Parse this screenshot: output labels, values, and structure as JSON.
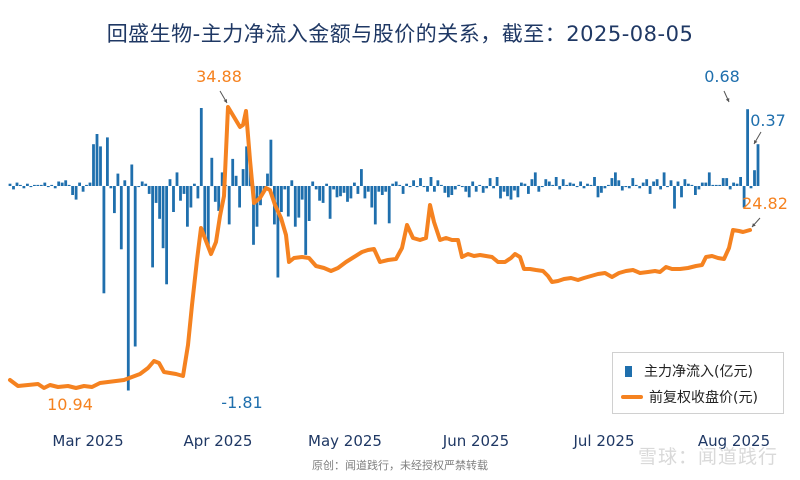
{
  "title": "回盛生物-主力净流入金额与股价的关系，截至：2025-08-05",
  "footer": "原创：闻道践行，未经授权严禁转载",
  "watermark": "雪球：闻道践行",
  "colors": {
    "bar": "#1f6fad",
    "line": "#f58220",
    "title": "#1f3864"
  },
  "chart_data": {
    "type": "bar",
    "title": "回盛生物-主力净流入金额与股价的关系，截至：2025-08-05",
    "x_ticks": [
      "Mar 2025",
      "Apr 2025",
      "May 2025",
      "Jun 2025",
      "Jul 2025",
      "Aug 2025"
    ],
    "grid": false,
    "legend_position": "bottom-right",
    "series": [
      {
        "name": "主力净流入(亿元)",
        "type": "bar",
        "values": [
          0.02,
          -0.03,
          0.03,
          0.01,
          -0.02,
          0.02,
          -0.01,
          0.01,
          0.01,
          0.01,
          0.03,
          -0.01,
          0.01,
          -0.02,
          0.04,
          0.03,
          0.05,
          0.01,
          -0.08,
          -0.12,
          0.03,
          -0.05,
          0.01,
          0.03,
          0.37,
          0.46,
          0.35,
          -0.95,
          0.43,
          -0.02,
          -0.24,
          0.11,
          -0.56,
          0.05,
          -1.81,
          0.19,
          -1.42,
          -0.01,
          0.04,
          0.02,
          -0.07,
          -0.72,
          -0.15,
          -0.29,
          -0.55,
          -0.87,
          0.06,
          -0.23,
          0.12,
          -0.13,
          -0.07,
          -0.36,
          -0.19,
          0.02,
          -0.11,
          0.69,
          -0.45,
          -0.53,
          0.25,
          -0.14,
          -0.22,
          0.12,
          0.01,
          -0.34,
          0.24,
          0.09,
          -0.19,
          0.15,
          0.35,
          0.25,
          -0.52,
          -0.36,
          -0.17,
          -0.05,
          0.11,
          0.41,
          -0.34,
          -0.81,
          -0.23,
          -0.03,
          -0.27,
          0.05,
          -0.36,
          -0.28,
          -0.12,
          -0.61,
          -0.31,
          0.04,
          -0.03,
          -0.13,
          -0.15,
          0.02,
          -0.29,
          -0.03,
          -0.1,
          -0.09,
          -0.06,
          -0.14,
          -0.11,
          0.03,
          -0.07,
          0.15,
          -0.11,
          -0.05,
          -0.19,
          -0.34,
          -0.05,
          -0.08,
          -0.05,
          -0.33,
          0.02,
          0.04,
          0.01,
          -0.07,
          0.02,
          -0.01,
          0.05,
          -0.01,
          0.07,
          -0.01,
          -0.05,
          0.08,
          -0.05,
          0.05,
          0.01,
          -0.06,
          -0.1,
          -0.08,
          -0.03,
          0.01,
          -0.01,
          -0.05,
          -0.1,
          0.04,
          -0.05,
          0.01,
          -0.06,
          -0.02,
          0.07,
          -0.02,
          0.08,
          -0.11,
          -0.05,
          -0.09,
          -0.12,
          -0.04,
          -0.1,
          0.03,
          0.02,
          -0.07,
          0.06,
          0.12,
          -0.05,
          -0.01,
          0.06,
          0.04,
          0.01,
          0.08,
          -0.03,
          0.06,
          0.01,
          0.03,
          0.02,
          -0.01,
          0.04,
          -0.02,
          0.02,
          0.01,
          0.08,
          -0.1,
          -0.06,
          -0.02,
          0.01,
          0.07,
          0.12,
          0.05,
          -0.04,
          -0.01,
          -0.02,
          0.07,
          0.01,
          -0.02,
          0.03,
          0.06,
          -0.07,
          0.04,
          0.06,
          -0.03,
          0.12,
          -0.01,
          0.05,
          -0.2,
          0.04,
          -0.1,
          0.06,
          0.02,
          0.01,
          -0.08,
          -0.03,
          0.03,
          0.03,
          0.12,
          0.01,
          0.01,
          0.01,
          0.07,
          0.07,
          -0.03,
          0.03,
          0.02,
          0.08,
          -0.19,
          0.68,
          -0.02,
          0.14,
          0.37
        ],
        "annotations": [
          {
            "label": "-1.81",
            "value": -1.81
          },
          {
            "label": "0.68",
            "value": 0.68
          },
          {
            "label": "0.37",
            "value": 0.37
          }
        ]
      },
      {
        "name": "前复权收盘价(元)",
        "type": "line",
        "annotations": [
          {
            "label": "10.94",
            "value": 10.94
          },
          {
            "label": "34.88",
            "value": 34.88
          },
          {
            "label": "24.82",
            "value": 24.82
          }
        ]
      }
    ]
  }
}
